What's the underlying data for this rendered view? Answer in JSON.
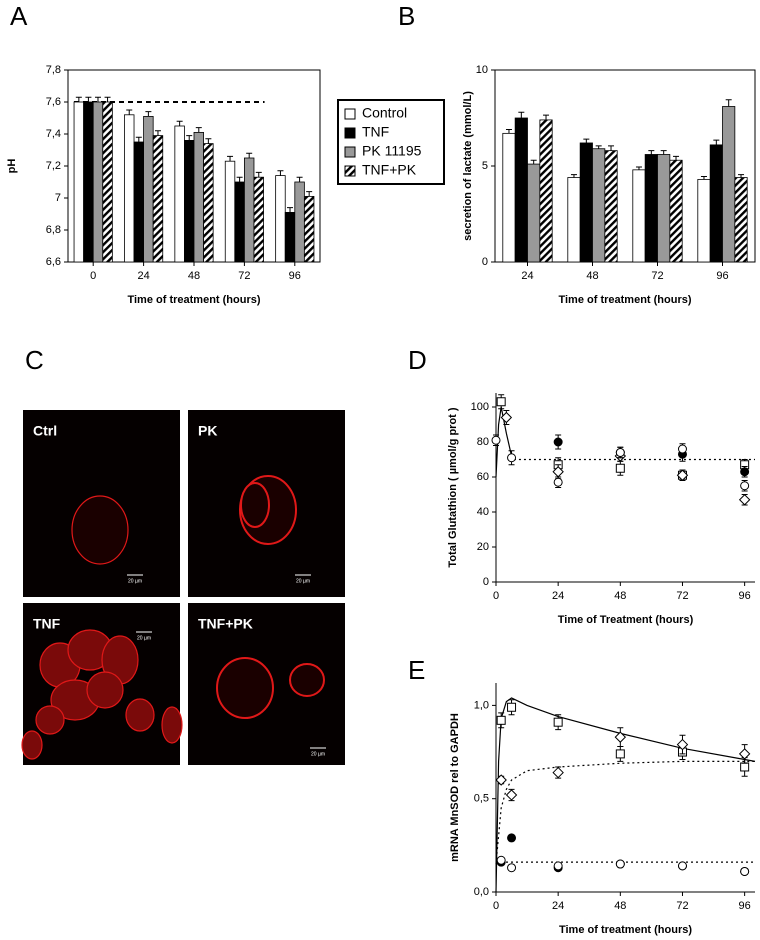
{
  "chart_data": [
    {
      "type": "bar",
      "label": "A",
      "ylabel": "pH",
      "xlabel": "Time of treatment (hours)",
      "categories": [
        "0",
        "24",
        "48",
        "72",
        "96"
      ],
      "series": [
        {
          "name": "Control",
          "color": "#ffffff",
          "values": [
            7.6,
            7.52,
            7.45,
            7.23,
            7.14
          ],
          "errors": [
            0.03,
            0.03,
            0.03,
            0.03,
            0.03
          ]
        },
        {
          "name": "TNF",
          "color": "#000000",
          "values": [
            7.6,
            7.35,
            7.36,
            7.1,
            6.91
          ],
          "errors": [
            0.03,
            0.03,
            0.03,
            0.03,
            0.03
          ]
        },
        {
          "name": "PK 11195",
          "color": "#999999",
          "values": [
            7.6,
            7.51,
            7.41,
            7.25,
            7.1
          ],
          "errors": [
            0.03,
            0.03,
            0.03,
            0.03,
            0.03
          ]
        },
        {
          "name": "TNF+PK",
          "color": "#ffffff",
          "pattern": "hatch",
          "values": [
            7.6,
            7.39,
            7.34,
            7.13,
            7.01
          ],
          "errors": [
            0.03,
            0.03,
            0.03,
            0.03,
            0.03
          ]
        }
      ],
      "ylim": [
        6.6,
        7.8
      ],
      "yticks": [
        {
          "value": 6.6,
          "label": "6,6"
        },
        {
          "value": 6.8,
          "label": "6,8"
        },
        7,
        {
          "value": 7.2,
          "label": "7,2"
        },
        {
          "value": 7.4,
          "label": "7,4"
        },
        {
          "value": 7.6,
          "label": "7,6"
        },
        {
          "value": 7.8,
          "label": "7,8"
        }
      ],
      "reference_line": 7.6,
      "legend": "right"
    },
    {
      "type": "bar",
      "label": "B",
      "ylabel": "secretion of lactate (mmol/L)",
      "xlabel": "Time of treatment (hours)",
      "categories": [
        "24",
        "48",
        "72",
        "96"
      ],
      "series": [
        {
          "color": "#ffffff",
          "values": [
            6.7,
            4.4,
            4.8,
            4.3
          ],
          "errors": [
            0.2,
            0.15,
            0.15,
            0.15
          ]
        },
        {
          "color": "#000000",
          "values": [
            7.5,
            6.2,
            5.6,
            6.1
          ],
          "errors": [
            0.3,
            0.2,
            0.2,
            0.25
          ]
        },
        {
          "color": "#999999",
          "values": [
            5.1,
            5.9,
            5.6,
            8.1
          ],
          "errors": [
            0.2,
            0.15,
            0.2,
            0.35
          ]
        },
        {
          "color": "#ffffff",
          "pattern": "hatch",
          "values": [
            7.4,
            5.8,
            5.3,
            4.4
          ],
          "errors": [
            0.25,
            0.25,
            0.2,
            0.15
          ]
        }
      ],
      "ylim": [
        0,
        10
      ],
      "yticks": [
        0,
        5,
        10
      ]
    },
    {
      "type": "scatter",
      "label": "D",
      "ylabel": "Total Glutathion ( µmol/g prot )",
      "xlabel": "Time of Treatment (hours)",
      "series": [
        {
          "marker": "square",
          "x": [
            2,
            24,
            48,
            72,
            96
          ],
          "values": [
            103,
            67,
            65,
            61,
            67
          ],
          "errors": [
            4,
            4,
            4,
            3,
            3
          ]
        },
        {
          "marker": "diamond",
          "x": [
            4,
            24,
            48,
            72,
            96
          ],
          "values": [
            94,
            63,
            72,
            61,
            47
          ],
          "errors": [
            4,
            4,
            3,
            3,
            3
          ]
        },
        {
          "marker": "circle-filled",
          "x": [
            24,
            48,
            72,
            96
          ],
          "values": [
            80,
            74,
            73,
            63
          ],
          "errors": [
            4,
            3,
            4,
            3
          ]
        },
        {
          "marker": "circle",
          "x": [
            0,
            6,
            24,
            48,
            72,
            96
          ],
          "values": [
            81,
            71,
            57,
            74,
            76,
            55
          ],
          "errors": [
            3,
            4,
            3,
            3,
            3,
            3
          ]
        }
      ],
      "curves": [
        {
          "style": "solid",
          "x": [
            0,
            1,
            2,
            4,
            6
          ],
          "y": [
            60,
            90,
            100,
            85,
            72
          ]
        },
        {
          "style": "dotted",
          "x": [
            5,
            100
          ],
          "y": [
            70,
            70
          ]
        }
      ],
      "xlim": [
        0,
        100
      ],
      "xticks": [
        0,
        24,
        48,
        72,
        96
      ],
      "ylim": [
        0,
        108
      ],
      "yticks": [
        0,
        20,
        40,
        60,
        80,
        100
      ]
    },
    {
      "type": "scatter",
      "label": "E",
      "ylabel": "mRNA MnSOD rel to GAPDH",
      "xlabel": "Time of treatment (hours)",
      "series": [
        {
          "marker": "square",
          "x": [
            2,
            6,
            24,
            48,
            72,
            96
          ],
          "values": [
            0.92,
            0.99,
            0.91,
            0.74,
            0.75,
            0.67
          ],
          "errors": [
            0.04,
            0.04,
            0.04,
            0.04,
            0.04,
            0.05
          ]
        },
        {
          "marker": "diamond",
          "x": [
            2,
            6,
            24,
            48,
            72,
            96
          ],
          "values": [
            0.6,
            0.52,
            0.64,
            0.83,
            0.79,
            0.74
          ],
          "errors": [
            0.02,
            0.03,
            0.03,
            0.05,
            0.05,
            0.05
          ]
        },
        {
          "marker": "circle-filled",
          "x": [
            2,
            6,
            24,
            48,
            72,
            96
          ],
          "values": [
            0.16,
            0.29,
            0.13,
            0.15,
            0.14,
            0.11
          ],
          "errors": [
            0.01,
            0.01,
            0.01,
            0.01,
            0.01,
            0.01
          ]
        },
        {
          "marker": "circle",
          "x": [
            2,
            6,
            24,
            48,
            72,
            96
          ],
          "values": [
            0.17,
            0.13,
            0.14,
            0.15,
            0.14,
            0.11
          ],
          "errors": [
            0.01,
            0.01,
            0.01,
            0.01,
            0.01,
            0.01
          ]
        }
      ],
      "curves": [
        {
          "style": "solid",
          "x": [
            0,
            1,
            2,
            4,
            6,
            12,
            24,
            48,
            72,
            96,
            100
          ],
          "y": [
            0,
            0.7,
            0.93,
            1.02,
            1.04,
            1.0,
            0.94,
            0.85,
            0.77,
            0.71,
            0.7
          ]
        },
        {
          "style": "dotted",
          "x": [
            0,
            2,
            4,
            6,
            12,
            24,
            48,
            72,
            100
          ],
          "y": [
            0.15,
            0.45,
            0.55,
            0.6,
            0.65,
            0.67,
            0.69,
            0.7,
            0.7
          ]
        },
        {
          "style": "dotted",
          "x": [
            0,
            100
          ],
          "y": [
            0.16,
            0.16
          ]
        }
      ],
      "xlim": [
        0,
        100
      ],
      "xticks": [
        0,
        24,
        48,
        72,
        96
      ],
      "ylim": [
        0,
        1.12
      ],
      "yticks": [
        {
          "value": 0,
          "label": "0,0"
        },
        {
          "value": 0.5,
          "label": "0,5"
        },
        {
          "value": 1,
          "label": "1,0"
        }
      ]
    }
  ],
  "micrographs": {
    "label": "C",
    "images": [
      {
        "label": "Ctrl",
        "scale_bar": "20 µm"
      },
      {
        "label": "PK",
        "scale_bar": "20 µm"
      },
      {
        "label": "TNF",
        "scale_bar": "20 µm"
      },
      {
        "label": "TNF+PK",
        "scale_bar": "20 µm"
      }
    ]
  }
}
